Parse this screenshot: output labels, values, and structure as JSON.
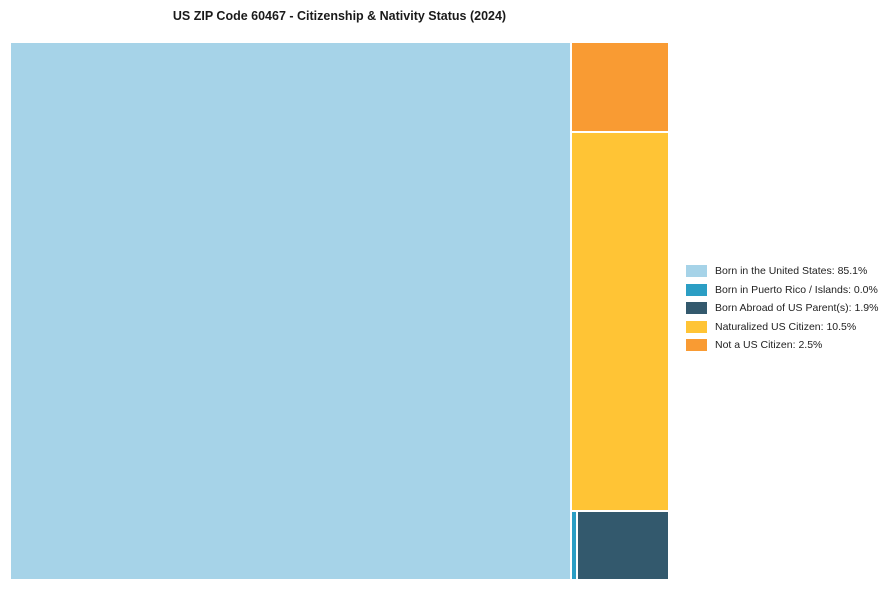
{
  "page": {
    "background": "#ffffff"
  },
  "chart_data": {
    "type": "treemap",
    "title": "US ZIP Code 60467 - Citizenship & Nativity Status (2024)",
    "legend_position": "right",
    "grid": false,
    "items": [
      {
        "key": "born-in-the-united-states",
        "name": "Born in the United States",
        "value": 85.1,
        "color": "#A6D3E8",
        "legend_label": "Born in the United States: 85.1%"
      },
      {
        "key": "born-in-puerto-rico-islands",
        "name": "Born in Puerto Rico / Islands",
        "value": 0.0,
        "color": "#2B9EC4",
        "legend_label": "Born in Puerto Rico / Islands: 0.0%"
      },
      {
        "key": "born-abroad-of-us-parents",
        "name": "Born Abroad of US Parent(s)",
        "value": 1.9,
        "color": "#33596D",
        "legend_label": "Born Abroad of US Parent(s): 1.9%"
      },
      {
        "key": "naturalized-us-citizen",
        "name": "Naturalized US Citizen",
        "value": 10.5,
        "color": "#FFC435",
        "legend_label": "Naturalized US Citizen: 10.5%"
      },
      {
        "key": "not-a-us-citizen",
        "name": "Not a US Citizen",
        "value": 2.5,
        "color": "#F99B33",
        "legend_label": "Not a US Citizen: 2.5%"
      }
    ]
  }
}
